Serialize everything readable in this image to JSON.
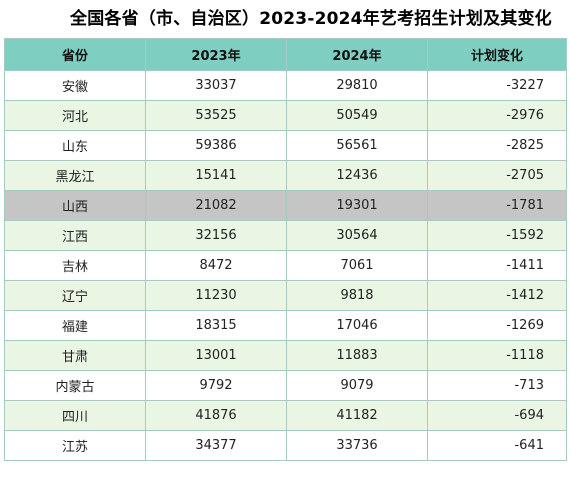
{
  "title": "全国各省（市、自治区）2023-2024年艺考招生计划及其变化",
  "table": {
    "headers": [
      "省份",
      "2023年",
      "2024年",
      "计划变化"
    ],
    "highlighted_row": "山西",
    "rows": [
      {
        "province": "安徽",
        "y2023": "33037",
        "y2024": "29810",
        "change": "-3227"
      },
      {
        "province": "河北",
        "y2023": "53525",
        "y2024": "50549",
        "change": "-2976"
      },
      {
        "province": "山东",
        "y2023": "59386",
        "y2024": "56561",
        "change": "-2825"
      },
      {
        "province": "黑龙江",
        "y2023": "15141",
        "y2024": "12436",
        "change": "-2705"
      },
      {
        "province": "山西",
        "y2023": "21082",
        "y2024": "19301",
        "change": "-1781"
      },
      {
        "province": "江西",
        "y2023": "32156",
        "y2024": "30564",
        "change": "-1592"
      },
      {
        "province": "吉林",
        "y2023": "8472",
        "y2024": "7061",
        "change": "-1411"
      },
      {
        "province": "辽宁",
        "y2023": "11230",
        "y2024": "9818",
        "change": "-1412"
      },
      {
        "province": "福建",
        "y2023": "18315",
        "y2024": "17046",
        "change": "-1269"
      },
      {
        "province": "甘肃",
        "y2023": "13001",
        "y2024": "11883",
        "change": "-1118"
      },
      {
        "province": "内蒙古",
        "y2023": "9792",
        "y2024": "9079",
        "change": "-713"
      },
      {
        "province": "四川",
        "y2023": "41876",
        "y2024": "41182",
        "change": "-694"
      },
      {
        "province": "江苏",
        "y2023": "34377",
        "y2024": "33736",
        "change": "-641"
      }
    ]
  },
  "colors": {
    "header_bg": "#7ecfc1",
    "alt_row_bg": "#e9f6e4",
    "highlight_row_bg": "#c5c5c5",
    "border": "#a8c8c4"
  }
}
